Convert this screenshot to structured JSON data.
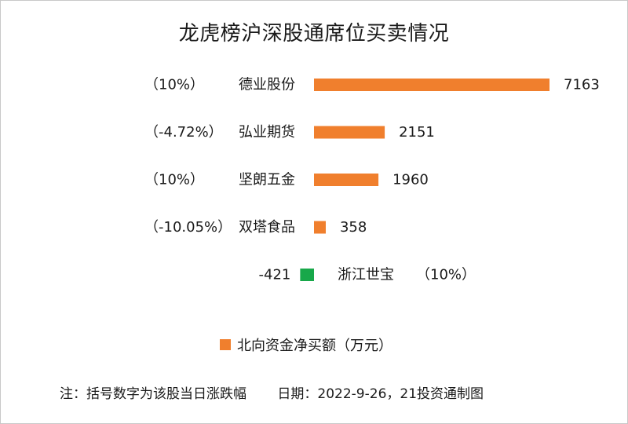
{
  "title": "龙虎榜沪深股通席位买卖情况",
  "colors": {
    "positive": "#f07f2d",
    "negative": "#18a84a",
    "text": "#1a1a1a"
  },
  "legend_label": "北向资金净买额（万元）",
  "note": {
    "text": "注：括号数字为该股当日涨跌幅",
    "date": "日期：2022-9-26，21投资通制图"
  },
  "chart_data": {
    "type": "bar",
    "orientation": "horizontal",
    "title": "龙虎榜沪深股通席位买卖情况",
    "series": [
      {
        "name": "北向资金净买额（万元）",
        "values": [
          7163,
          2151,
          1960,
          358,
          -421
        ]
      }
    ],
    "categories": [
      "德业股份",
      "弘业期货",
      "坚朗五金",
      "双塔食品",
      "浙江世宝"
    ],
    "pct_change_labels": [
      "（10%）",
      "（-4.72%）",
      "（10%）",
      "（-10.05%）",
      "（10%）"
    ],
    "value_labels": [
      "7163",
      "2151",
      "1960",
      "358",
      "-421"
    ],
    "grid": false,
    "legend_position": "bottom"
  }
}
